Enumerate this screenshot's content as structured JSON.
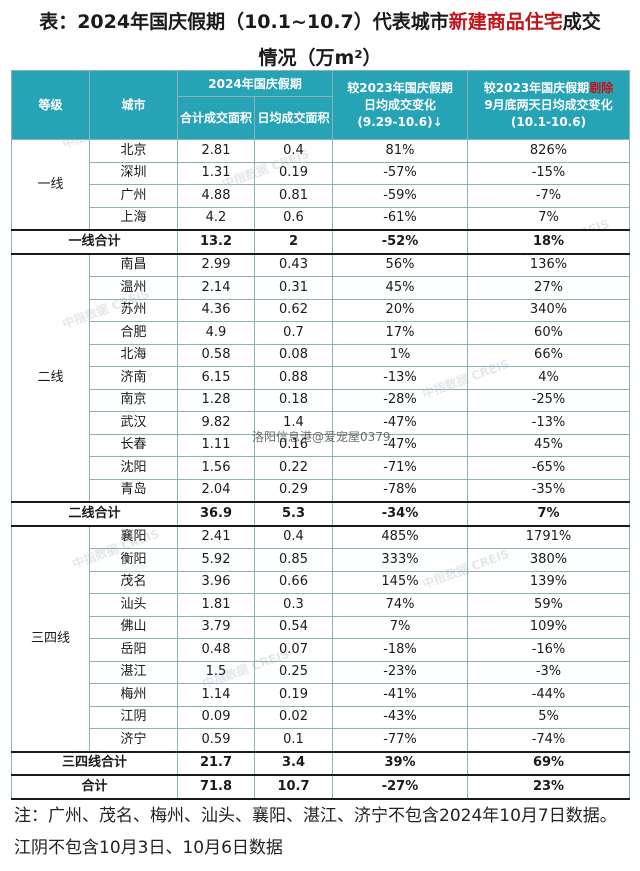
{
  "title": {
    "prefix": "表：2024年国庆假期（10.1~10.7）代表城市",
    "highlight": "新建商品住宅",
    "suffix": "成交",
    "line2": "情况（万m²）"
  },
  "headers": {
    "level": "等级",
    "city": "城市",
    "holiday_2024": "2024年国庆假期",
    "total_area": "合计成交面积",
    "daily_area": "日均成交面积",
    "vs2023_daily_title": "较2023年国庆假期",
    "vs2023_daily_sub": "日均成交变化",
    "vs2023_daily_range": "(9.29-10.6)↓",
    "vs2023_excl_title_a": "较2023年国庆假期",
    "vs2023_excl_title_b": "剔除",
    "vs2023_excl_sub": "9月底两天日均成交变化",
    "vs2023_excl_range": "(10.1-10.6)"
  },
  "groups": [
    {
      "level": "一线",
      "rows": [
        {
          "city": "北京",
          "total": "2.81",
          "daily": "0.4",
          "chg": "81%",
          "chg2": "826%"
        },
        {
          "city": "深圳",
          "total": "1.31",
          "daily": "0.19",
          "chg": "-57%",
          "chg2": "-15%"
        },
        {
          "city": "广州",
          "total": "4.88",
          "daily": "0.81",
          "chg": "-59%",
          "chg2": "-7%"
        },
        {
          "city": "上海",
          "total": "4.2",
          "daily": "0.6",
          "chg": "-61%",
          "chg2": "7%"
        }
      ],
      "subtotal": {
        "label": "一线合计",
        "total": "13.2",
        "daily": "2",
        "chg": "-52%",
        "chg2": "18%"
      }
    },
    {
      "level": "二线",
      "rows": [
        {
          "city": "南昌",
          "total": "2.99",
          "daily": "0.43",
          "chg": "56%",
          "chg2": "136%"
        },
        {
          "city": "温州",
          "total": "2.14",
          "daily": "0.31",
          "chg": "45%",
          "chg2": "27%"
        },
        {
          "city": "苏州",
          "total": "4.36",
          "daily": "0.62",
          "chg": "20%",
          "chg2": "340%"
        },
        {
          "city": "合肥",
          "total": "4.9",
          "daily": "0.7",
          "chg": "17%",
          "chg2": "60%"
        },
        {
          "city": "北海",
          "total": "0.58",
          "daily": "0.08",
          "chg": "1%",
          "chg2": "66%"
        },
        {
          "city": "济南",
          "total": "6.15",
          "daily": "0.88",
          "chg": "-13%",
          "chg2": "4%"
        },
        {
          "city": "南京",
          "total": "1.28",
          "daily": "0.18",
          "chg": "-28%",
          "chg2": "-25%"
        },
        {
          "city": "武汉",
          "total": "9.82",
          "daily": "1.4",
          "chg": "-47%",
          "chg2": "-13%"
        },
        {
          "city": "长春",
          "total": "1.11",
          "daily": "0.16",
          "chg": "-47%",
          "chg2": "45%"
        },
        {
          "city": "沈阳",
          "total": "1.56",
          "daily": "0.22",
          "chg": "-71%",
          "chg2": "-65%"
        },
        {
          "city": "青岛",
          "total": "2.04",
          "daily": "0.29",
          "chg": "-78%",
          "chg2": "-35%"
        }
      ],
      "subtotal": {
        "label": "二线合计",
        "total": "36.9",
        "daily": "5.3",
        "chg": "-34%",
        "chg2": "7%"
      }
    },
    {
      "level": "三四线",
      "rows": [
        {
          "city": "襄阳",
          "total": "2.41",
          "daily": "0.4",
          "chg": "485%",
          "chg2": "1791%"
        },
        {
          "city": "衡阳",
          "total": "5.92",
          "daily": "0.85",
          "chg": "333%",
          "chg2": "380%"
        },
        {
          "city": "茂名",
          "total": "3.96",
          "daily": "0.66",
          "chg": "145%",
          "chg2": "139%"
        },
        {
          "city": "汕头",
          "total": "1.81",
          "daily": "0.3",
          "chg": "74%",
          "chg2": "59%"
        },
        {
          "city": "佛山",
          "total": "3.79",
          "daily": "0.54",
          "chg": "7%",
          "chg2": "109%"
        },
        {
          "city": "岳阳",
          "total": "0.48",
          "daily": "0.07",
          "chg": "-18%",
          "chg2": "-16%"
        },
        {
          "city": "湛江",
          "total": "1.5",
          "daily": "0.25",
          "chg": "-23%",
          "chg2": "-3%"
        },
        {
          "city": "梅州",
          "total": "1.14",
          "daily": "0.19",
          "chg": "-41%",
          "chg2": "-44%"
        },
        {
          "city": "江阴",
          "total": "0.09",
          "daily": "0.02",
          "chg": "-43%",
          "chg2": "5%"
        },
        {
          "city": "济宁",
          "total": "0.59",
          "daily": "0.1",
          "chg": "-77%",
          "chg2": "-74%"
        }
      ],
      "subtotal": {
        "label": "三四线合计",
        "total": "21.7",
        "daily": "3.4",
        "chg": "39%",
        "chg2": "69%"
      }
    }
  ],
  "grand_total": {
    "label": "合计",
    "total": "71.8",
    "daily": "10.7",
    "chg": "-27%",
    "chg2": "23%"
  },
  "note": "注：广州、茂名、梅州、汕头、襄阳、湛江、济宁不包含2024年10月7日数据。江阴不包含10月3日、10月6日数据",
  "overlay_watermark": "洛阳信息港@爱宠屋0379",
  "bg_watermark": "中指数据 CREIS",
  "colors": {
    "header_bg": "#27a3b6",
    "highlight": "#c0161b"
  }
}
